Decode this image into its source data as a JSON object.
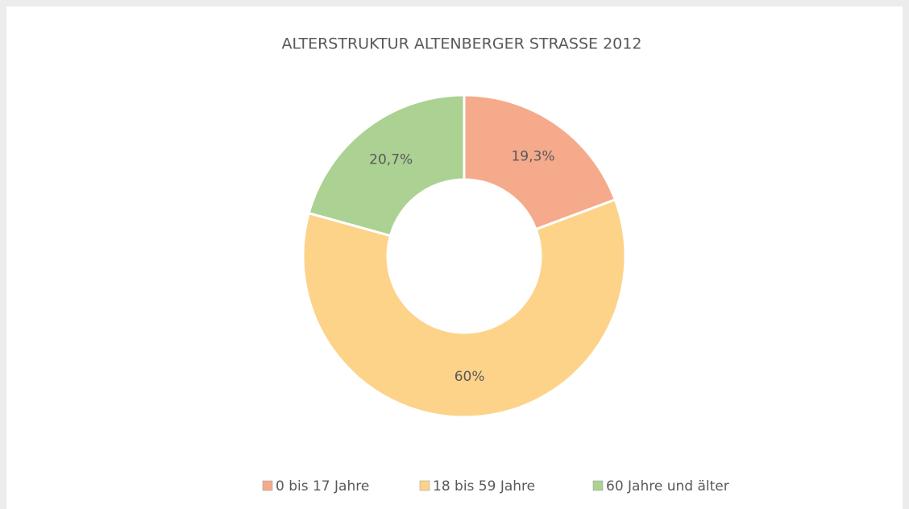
{
  "chart_data": {
    "type": "donut",
    "title": "ALTERSTRUKTUR ALTENBERGER STRASSE 2012",
    "categories": [
      "0 bis 17 Jahre",
      "18 bis 59 Jahre",
      "60 Jahre und älter"
    ],
    "values": [
      19.3,
      60,
      20.7
    ],
    "value_labels": [
      "19,3%",
      "60%",
      "20,7%"
    ],
    "colors": [
      "#f4aa8b",
      "#fdd38a",
      "#abd193"
    ],
    "legend": "bottom"
  }
}
